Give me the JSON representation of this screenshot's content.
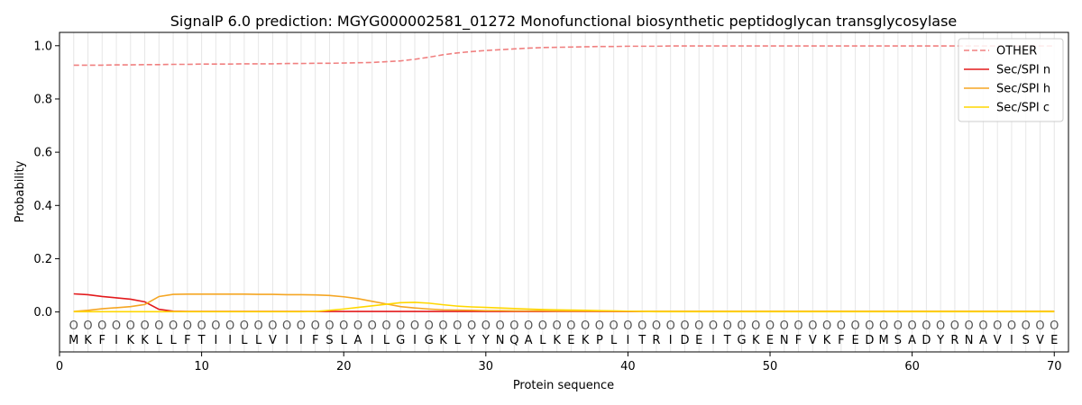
{
  "chart_data": {
    "type": "line",
    "title": "SignalP 6.0 prediction: MGYG000002581_01272 Monofunctional biosynthetic peptidoglycan transglycosylase",
    "xlabel": "Protein sequence",
    "ylabel": "Probability",
    "xlim": [
      0,
      71
    ],
    "ylim": [
      -0.15,
      1.05
    ],
    "xticks": [
      0,
      10,
      20,
      30,
      40,
      50,
      60,
      70
    ],
    "yticks": [
      0.0,
      0.2,
      0.4,
      0.6,
      0.8,
      1.0
    ],
    "ytick_labels": [
      "0.0",
      "0.2",
      "0.4",
      "0.6",
      "0.8",
      "1.0"
    ],
    "grid": "vertical lines at each residue",
    "legend_position": "top-right",
    "sequence": [
      "M",
      "K",
      "F",
      "I",
      "K",
      "K",
      "L",
      "L",
      "F",
      "T",
      "I",
      "I",
      "L",
      "L",
      "V",
      "I",
      "I",
      "F",
      "S",
      "L",
      "A",
      "I",
      "L",
      "G",
      "I",
      "G",
      "K",
      "L",
      "Y",
      "Y",
      "N",
      "Q",
      "A",
      "L",
      "K",
      "E",
      "K",
      "P",
      "L",
      "I",
      "T",
      "R",
      "I",
      "D",
      "E",
      "I",
      "T",
      "G",
      "K",
      "E",
      "N",
      "F",
      "V",
      "K",
      "F",
      "E",
      "D",
      "M",
      "S",
      "A",
      "D",
      "Y",
      "R",
      "N",
      "A",
      "V",
      "I",
      "S",
      "V",
      "E"
    ],
    "region_label": "O",
    "series": [
      {
        "name": "OTHER",
        "color": "#f08080",
        "dash": true,
        "values": [
          0.927,
          0.927,
          0.927,
          0.928,
          0.928,
          0.929,
          0.929,
          0.93,
          0.93,
          0.931,
          0.931,
          0.931,
          0.932,
          0.932,
          0.932,
          0.933,
          0.933,
          0.934,
          0.934,
          0.935,
          0.936,
          0.937,
          0.94,
          0.943,
          0.949,
          0.957,
          0.966,
          0.973,
          0.978,
          0.982,
          0.985,
          0.988,
          0.991,
          0.993,
          0.994,
          0.995,
          0.996,
          0.997,
          0.997,
          0.998,
          0.998,
          0.998,
          0.999,
          0.999,
          0.999,
          0.999,
          0.999,
          0.999,
          0.999,
          0.999,
          0.999,
          0.999,
          0.999,
          0.999,
          0.999,
          0.999,
          0.999,
          0.999,
          0.999,
          0.999,
          0.999,
          0.999,
          0.999,
          0.999,
          0.999,
          0.999,
          0.999,
          0.999,
          0.999,
          0.999
        ]
      },
      {
        "name": "Sec/SPI n",
        "color": "#e31a1c",
        "dash": false,
        "values": [
          0.068,
          0.065,
          0.058,
          0.053,
          0.048,
          0.038,
          0.01,
          0.003,
          0.002,
          0.002,
          0.002,
          0.002,
          0.002,
          0.002,
          0.002,
          0.002,
          0.002,
          0.002,
          0.002,
          0.002,
          0.002,
          0.002,
          0.002,
          0.002,
          0.002,
          0.002,
          0.002,
          0.002,
          0.002,
          0.002,
          0.002,
          0.002,
          0.002,
          0.002,
          0.002,
          0.002,
          0.002,
          0.002,
          0.002,
          0.002,
          0.002,
          0.002,
          0.002,
          0.002,
          0.002,
          0.002,
          0.002,
          0.002,
          0.002,
          0.002,
          0.002,
          0.002,
          0.002,
          0.002,
          0.002,
          0.002,
          0.002,
          0.002,
          0.002,
          0.002,
          0.002,
          0.002,
          0.002,
          0.002,
          0.002,
          0.002,
          0.002,
          0.002,
          0.002,
          0.002
        ]
      },
      {
        "name": "Sec/SPI h",
        "color": "#f5a623",
        "dash": false,
        "values": [
          0.002,
          0.006,
          0.012,
          0.016,
          0.02,
          0.028,
          0.058,
          0.066,
          0.067,
          0.067,
          0.067,
          0.067,
          0.067,
          0.066,
          0.066,
          0.065,
          0.065,
          0.064,
          0.062,
          0.057,
          0.05,
          0.04,
          0.03,
          0.02,
          0.015,
          0.011,
          0.008,
          0.007,
          0.006,
          0.005,
          0.005,
          0.004,
          0.004,
          0.004,
          0.003,
          0.003,
          0.003,
          0.003,
          0.003,
          0.003,
          0.003,
          0.003,
          0.003,
          0.003,
          0.003,
          0.003,
          0.003,
          0.003,
          0.003,
          0.003,
          0.003,
          0.003,
          0.003,
          0.003,
          0.003,
          0.003,
          0.003,
          0.003,
          0.003,
          0.003,
          0.003,
          0.003,
          0.003,
          0.003,
          0.003,
          0.003,
          0.003,
          0.003,
          0.003,
          0.003
        ]
      },
      {
        "name": "Sec/SPI c",
        "color": "#ffd700",
        "dash": false,
        "values": [
          0.001,
          0.001,
          0.001,
          0.001,
          0.001,
          0.001,
          0.001,
          0.001,
          0.001,
          0.001,
          0.001,
          0.001,
          0.001,
          0.001,
          0.001,
          0.001,
          0.001,
          0.002,
          0.006,
          0.011,
          0.017,
          0.023,
          0.029,
          0.035,
          0.036,
          0.033,
          0.027,
          0.022,
          0.019,
          0.017,
          0.015,
          0.013,
          0.011,
          0.009,
          0.008,
          0.007,
          0.006,
          0.005,
          0.004,
          0.003,
          0.002,
          0.001,
          0.001,
          0.001,
          0.001,
          0.001,
          0.001,
          0.001,
          0.001,
          0.001,
          0.001,
          0.001,
          0.001,
          0.001,
          0.001,
          0.001,
          0.001,
          0.001,
          0.001,
          0.001,
          0.001,
          0.001,
          0.001,
          0.001,
          0.001,
          0.001,
          0.001,
          0.001,
          0.001,
          0.001
        ]
      }
    ]
  }
}
